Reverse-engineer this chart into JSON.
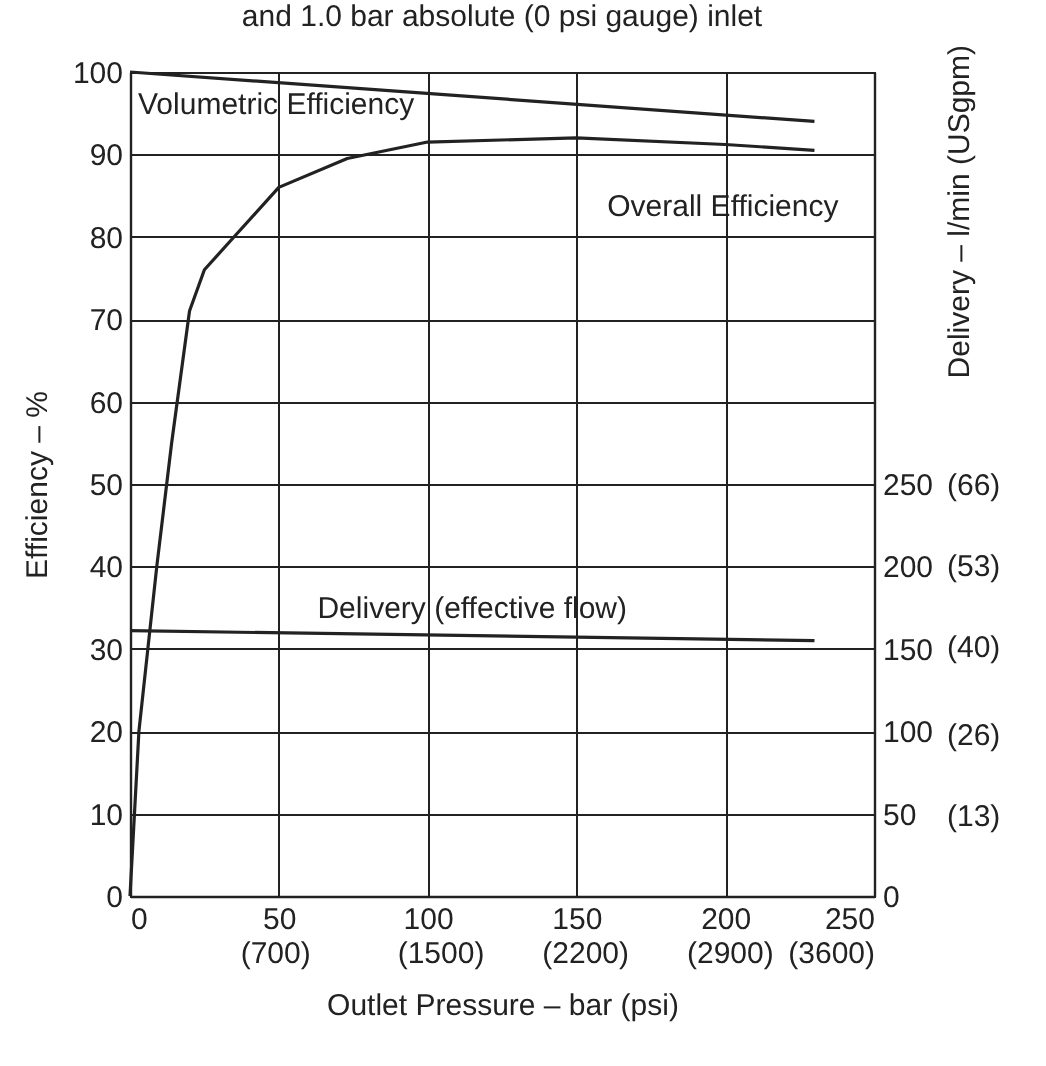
{
  "chart_data": {
    "type": "line",
    "title": "and 1.0 bar absolute (0 psi gauge) inlet",
    "xlabel": "Outlet Pressure – bar (psi)",
    "ylabel": "Efficiency – %",
    "y2label": "Delivery – l/min (USgpm)",
    "xlim": [
      0,
      250
    ],
    "xticks": [
      0,
      50,
      100,
      150,
      200,
      250
    ],
    "x2lim": [
      0,
      3600
    ],
    "x2ticks": [
      {
        "value": 700,
        "label": "(700)"
      },
      {
        "value": 1500,
        "label": "(1500)"
      },
      {
        "value": 2200,
        "label": "(2200)"
      },
      {
        "value": 2900,
        "label": "(2900)"
      },
      {
        "value": 3600,
        "label": "(3600)"
      }
    ],
    "ylim": [
      0,
      100
    ],
    "yticks": [
      0,
      10,
      20,
      30,
      40,
      50,
      60,
      70,
      80,
      90,
      100
    ],
    "y2lim": [
      0,
      500
    ],
    "y2ticks": [
      0,
      50,
      100,
      150,
      200,
      250
    ],
    "y3lim": [
      0,
      132
    ],
    "y3ticks": [
      {
        "value": 13,
        "label": "(13)"
      },
      {
        "value": 26,
        "label": "(26)"
      },
      {
        "value": 40,
        "label": "(40)"
      },
      {
        "value": 53,
        "label": "(53)"
      },
      {
        "value": 66,
        "label": "(66)"
      }
    ],
    "grid": true,
    "legend": false,
    "marker": "none",
    "line_style": "solid",
    "series": [
      {
        "name": "Volumetric Efficiency",
        "color": "#222222",
        "x": [
          0,
          230
        ],
        "values": [
          100,
          94
        ]
      },
      {
        "name": "Overall Efficiency",
        "color": "#222222",
        "x": [
          0,
          3,
          9,
          14,
          20,
          25,
          35,
          50,
          73,
          100,
          150,
          200,
          230
        ],
        "values": [
          0,
          20,
          40,
          55,
          71,
          76,
          80,
          86,
          89.5,
          91.5,
          92,
          91.2,
          90.5
        ]
      },
      {
        "name": "Delivery (effective flow)",
        "color": "#222222",
        "axis": "y2",
        "x": [
          0,
          230
        ],
        "values": [
          161,
          155
        ]
      }
    ]
  }
}
